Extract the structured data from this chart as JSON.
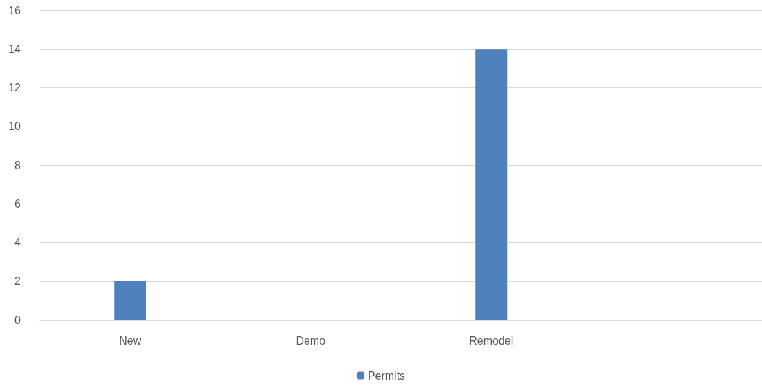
{
  "chart_data": {
    "type": "bar",
    "categories": [
      "New",
      "Demo",
      "Remodel",
      null
    ],
    "series": [
      {
        "name": "Permits",
        "color": "#4f81bd",
        "values": [
          2,
          0,
          14,
          null
        ]
      }
    ],
    "ylim": [
      0,
      16
    ],
    "yticks": [
      0,
      2,
      4,
      6,
      8,
      10,
      12,
      14,
      16
    ],
    "grid": "y",
    "legend": "bottom"
  }
}
